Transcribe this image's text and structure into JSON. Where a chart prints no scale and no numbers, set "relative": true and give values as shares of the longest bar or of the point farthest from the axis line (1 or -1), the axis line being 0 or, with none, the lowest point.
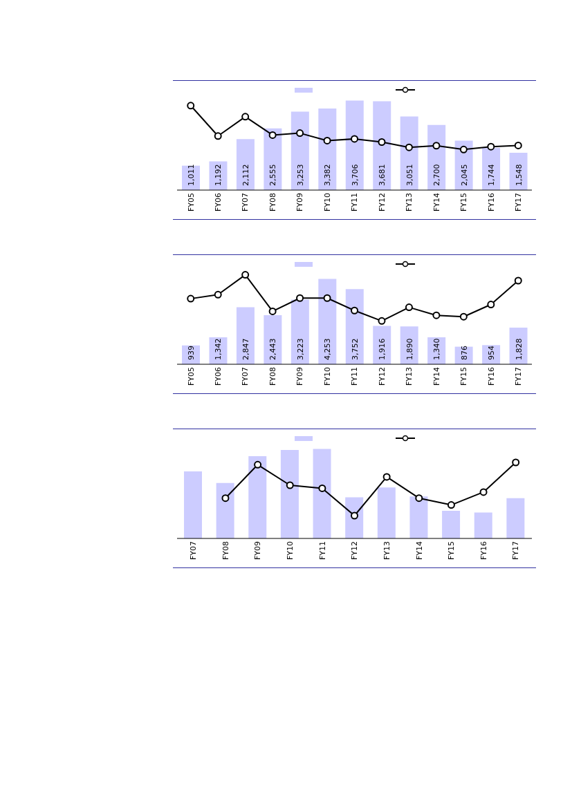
{
  "chart_data": [
    {
      "type": "bar",
      "categories": [
        "FY05",
        "FY06",
        "FY07",
        "FY08",
        "FY09",
        "FY10",
        "FY11",
        "FY12",
        "FY13",
        "FY14",
        "FY15",
        "FY16",
        "FY17"
      ],
      "marker": "circle",
      "series": [
        {
          "color": "#ccccff",
          "values": [
            1011,
            1192,
            2112,
            2555,
            3253,
            3382,
            3706,
            3681,
            3051,
            2700,
            2045,
            1744,
            1548
          ],
          "value_labels": [
            "1,011",
            "1,192",
            "2,112",
            "2,555",
            "3,253",
            "3,382",
            "3,706",
            "3,681",
            "3,051",
            "2,700",
            "2,045",
            "1,744",
            "1,548"
          ]
        },
        {
          "type": "line",
          "color": "#000000",
          "values": [
            3500,
            2240,
            3040,
            2280,
            2360,
            2050,
            2120,
            1990,
            1770,
            1840,
            1680,
            1800,
            1850
          ]
        }
      ]
    },
    {
      "type": "bar",
      "categories": [
        "FY05",
        "FY06",
        "FY07",
        "FY08",
        "FY09",
        "FY10",
        "FY11",
        "FY12",
        "FY13",
        "FY14",
        "FY15",
        "FY16",
        "FY17"
      ],
      "marker": "circle",
      "series": [
        {
          "color": "#ccccff",
          "values": [
            939,
            1342,
            2847,
            2443,
            3223,
            4253,
            3752,
            1916,
            1890,
            1340,
            876,
            954,
            1828
          ],
          "value_labels": [
            "939",
            "1,342",
            "2,847",
            "2,443",
            "3,223",
            "4,253",
            "3,752",
            "1,916",
            "1,890",
            "1,340",
            "876",
            "954",
            "1,828"
          ]
        },
        {
          "type": "line",
          "color": "#000000",
          "values": [
            3270,
            3470,
            4460,
            2640,
            3300,
            3300,
            2680,
            2160,
            2840,
            2440,
            2370,
            2980,
            4170
          ]
        }
      ]
    },
    {
      "type": "bar",
      "relative": true,
      "categories": [
        "FY07",
        "FY08",
        "FY09",
        "FY10",
        "FY11",
        "FY12",
        "FY13",
        "FY14",
        "FY15",
        "FY16",
        "FY17"
      ],
      "marker": "circle",
      "series": [
        {
          "color": "#ccccff",
          "values": [
            0.75,
            0.62,
            0.92,
            0.99,
            1,
            0.46,
            0.57,
            0.47,
            0.31,
            0.29,
            0.45
          ]
        },
        {
          "type": "line",
          "axis": "y2",
          "color": "#000000",
          "values": [
            null,
            0.53,
            0.97,
            0.7,
            0.66,
            0.3,
            0.81,
            0.53,
            0.44,
            0.61,
            1
          ]
        }
      ]
    }
  ]
}
